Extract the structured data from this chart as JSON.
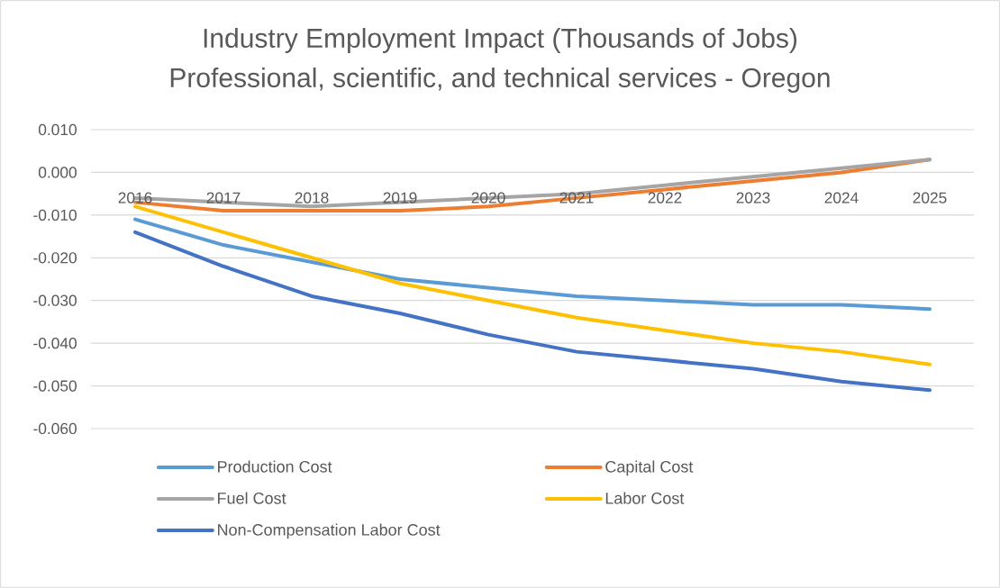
{
  "chart_data": {
    "type": "line",
    "title": "Industry Employment Impact (Thousands of Jobs)",
    "subtitle": "Professional, scientific, and technical services - Oregon",
    "categories": [
      "2016",
      "2017",
      "2018",
      "2019",
      "2020",
      "2021",
      "2022",
      "2023",
      "2024",
      "2025"
    ],
    "series": [
      {
        "name": "Production Cost",
        "color": "#5b9bd5",
        "values": [
          -0.011,
          -0.017,
          -0.021,
          -0.025,
          -0.027,
          -0.029,
          -0.03,
          -0.031,
          -0.031,
          -0.032
        ]
      },
      {
        "name": "Capital Cost",
        "color": "#ed7d31",
        "values": [
          -0.007,
          -0.009,
          -0.009,
          -0.009,
          -0.008,
          -0.006,
          -0.004,
          -0.002,
          0.0,
          0.003
        ]
      },
      {
        "name": "Fuel Cost",
        "color": "#a5a5a5",
        "values": [
          -0.006,
          -0.007,
          -0.008,
          -0.007,
          -0.006,
          -0.005,
          -0.003,
          -0.001,
          0.001,
          0.003
        ]
      },
      {
        "name": "Labor Cost",
        "color": "#ffc000",
        "values": [
          -0.008,
          -0.014,
          -0.02,
          -0.026,
          -0.03,
          -0.034,
          -0.037,
          -0.04,
          -0.042,
          -0.045
        ]
      },
      {
        "name": "Non-Compensation Labor Cost",
        "color": "#4472c4",
        "values": [
          -0.014,
          -0.022,
          -0.029,
          -0.033,
          -0.038,
          -0.042,
          -0.044,
          -0.046,
          -0.049,
          -0.051
        ]
      }
    ],
    "ylim": [
      -0.06,
      0.01
    ],
    "yticks": [
      {
        "value": -0.06,
        "label": "-0.060"
      },
      {
        "value": -0.05,
        "label": "-0.050"
      },
      {
        "value": -0.04,
        "label": "-0.040"
      },
      {
        "value": -0.03,
        "label": "-0.030"
      },
      {
        "value": -0.02,
        "label": "-0.020"
      },
      {
        "value": -0.01,
        "label": "-0.010"
      },
      {
        "value": 0,
        "label": "0.000"
      },
      {
        "value": 0.01,
        "label": "0.010"
      }
    ],
    "grid": "y",
    "legend": "bottom"
  }
}
